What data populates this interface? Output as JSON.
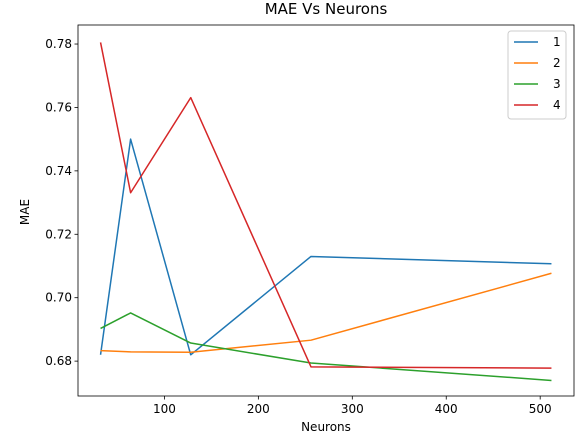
{
  "chart_data": {
    "type": "line",
    "title": "MAE Vs Neurons",
    "xlabel": "Neurons",
    "ylabel": "MAE",
    "xlim": [
      8,
      536
    ],
    "ylim": [
      0.669,
      0.786
    ],
    "xticks": [
      100,
      200,
      300,
      400,
      500
    ],
    "yticks": [
      0.68,
      0.7,
      0.72,
      0.74,
      0.76,
      0.78
    ],
    "ytick_labels": [
      "0.68",
      "0.70",
      "0.72",
      "0.74",
      "0.76",
      "0.78"
    ],
    "x": [
      32,
      64,
      128,
      256,
      512
    ],
    "grid": false,
    "legend_position": "top-right",
    "series": [
      {
        "name": "1",
        "color": "#1f77b4",
        "values": [
          0.682,
          0.75,
          0.682,
          0.713,
          0.7107
        ]
      },
      {
        "name": "2",
        "color": "#ff7f0e",
        "values": [
          0.6833,
          0.6829,
          0.6828,
          0.6866,
          0.7077
        ]
      },
      {
        "name": "3",
        "color": "#2ca02c",
        "values": [
          0.6903,
          0.6952,
          0.6857,
          0.6794,
          0.6739
        ]
      },
      {
        "name": "4",
        "color": "#d62728",
        "values": [
          0.7805,
          0.7331,
          0.7631,
          0.6782,
          0.6778
        ]
      }
    ]
  }
}
